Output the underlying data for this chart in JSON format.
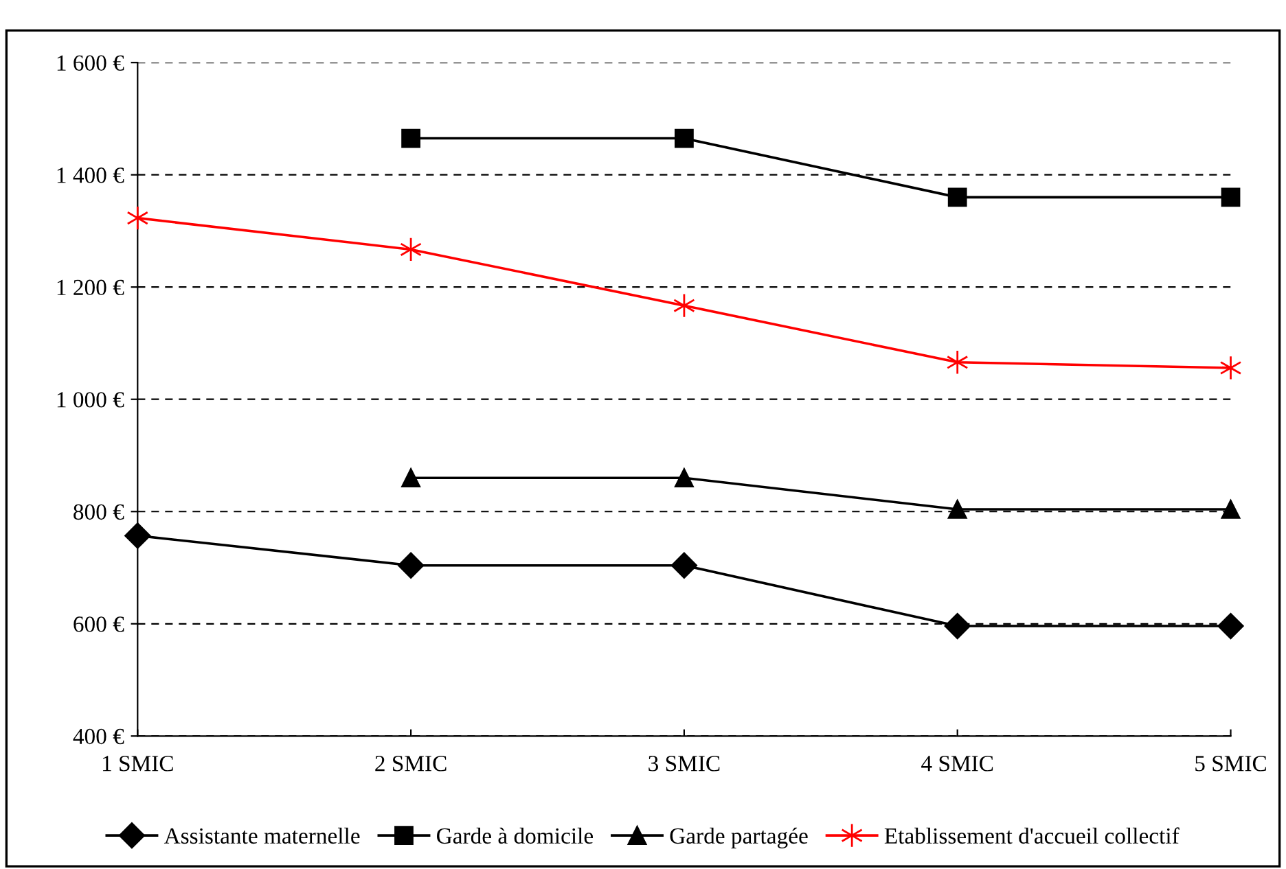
{
  "chart_data": {
    "type": "line",
    "categories": [
      "1 SMIC",
      "2 SMIC",
      "3 SMIC",
      "4 SMIC",
      "5 SMIC"
    ],
    "series": [
      {
        "name": "Assistante maternelle",
        "color": "#000000",
        "marker": "diamond",
        "values": [
          757,
          704,
          704,
          596,
          596
        ]
      },
      {
        "name": "Garde à domicile",
        "color": "#000000",
        "marker": "square",
        "values": [
          null,
          1465,
          1465,
          1360,
          1360
        ]
      },
      {
        "name": "Garde partagée",
        "color": "#000000",
        "marker": "triangle",
        "values": [
          null,
          860,
          860,
          804,
          804
        ]
      },
      {
        "name": "Etablissement d'accueil collectif",
        "color": "#ff0000",
        "marker": "cross",
        "values": [
          1323,
          1267,
          1167,
          1066,
          1056
        ]
      }
    ],
    "ylim": [
      400,
      1600
    ],
    "yticks": [
      {
        "value": 400,
        "label": "400 €"
      },
      {
        "value": 600,
        "label": "600 €"
      },
      {
        "value": 800,
        "label": "800 €"
      },
      {
        "value": 1000,
        "label": "1 000 €"
      },
      {
        "value": 1200,
        "label": "1 200 €"
      },
      {
        "value": 1400,
        "label": "1 400 €"
      },
      {
        "value": 1600,
        "label": "1 600 €"
      }
    ],
    "grid": "y",
    "legend": "bottom",
    "line_style": "solid"
  }
}
